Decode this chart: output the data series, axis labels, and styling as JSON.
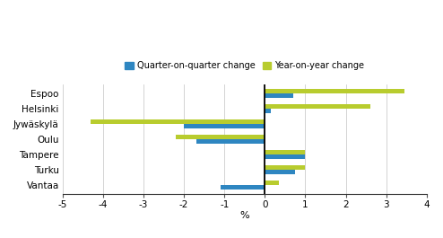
{
  "cities": [
    "Espoo",
    "Helsinki",
    "Jywäskylä",
    "Oulu",
    "Tampere",
    "Turku",
    "Vantaa"
  ],
  "quarter_on_quarter": [
    0.7,
    0.15,
    -2.0,
    -1.7,
    1.0,
    0.75,
    -1.1
  ],
  "year_on_year": [
    3.45,
    2.6,
    -4.3,
    -2.2,
    1.0,
    1.0,
    0.35
  ],
  "bar_color_quarter": "#2e86c1",
  "bar_color_year": "#b8cc2e",
  "xlim": [
    -5,
    4
  ],
  "xticks": [
    -5,
    -4,
    -3,
    -2,
    -1,
    0,
    1,
    2,
    3,
    4
  ],
  "xlabel": "%",
  "legend_quarter": "Quarter-on-quarter change",
  "legend_year": "Year-on-year change",
  "background_color": "#ffffff",
  "bar_height": 0.28
}
